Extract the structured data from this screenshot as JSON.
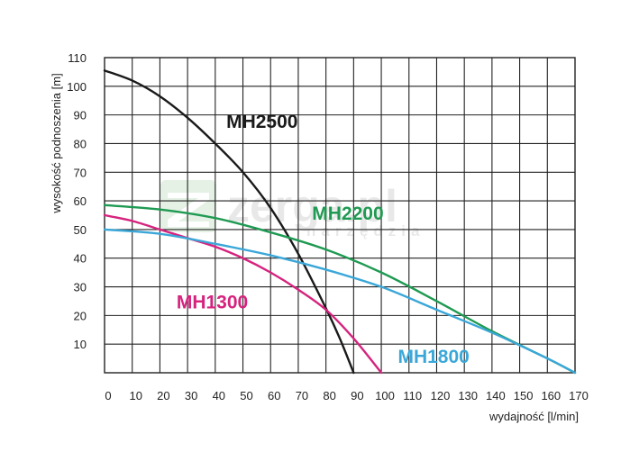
{
  "chart_data": {
    "type": "line",
    "xlabel": "wydajność [l/min]",
    "ylabel": "wysokość podnoszenia [m]",
    "xlim": [
      0,
      170
    ],
    "ylim": [
      0,
      110
    ],
    "x_ticks": [
      0,
      10,
      20,
      30,
      40,
      50,
      60,
      70,
      80,
      90,
      100,
      110,
      120,
      130,
      140,
      150,
      160,
      170
    ],
    "y_ticks": [
      10,
      20,
      30,
      40,
      50,
      60,
      70,
      80,
      90,
      100,
      110
    ],
    "grid": true,
    "series": [
      {
        "name": "MH2500",
        "color": "#1a1a1a",
        "points": [
          [
            0,
            105.5
          ],
          [
            10,
            102
          ],
          [
            20,
            96.5
          ],
          [
            30,
            89
          ],
          [
            40,
            80
          ],
          [
            50,
            70
          ],
          [
            60,
            57.5
          ],
          [
            70,
            41.5
          ],
          [
            80,
            22.5
          ],
          [
            85,
            12
          ],
          [
            90,
            0
          ]
        ]
      },
      {
        "name": "MH2200",
        "color": "#1f9a52",
        "points": [
          [
            0,
            58.5
          ],
          [
            20,
            57
          ],
          [
            40,
            54
          ],
          [
            60,
            49
          ],
          [
            80,
            43
          ],
          [
            100,
            35
          ],
          [
            120,
            25
          ],
          [
            140,
            14.5
          ],
          [
            160,
            5
          ],
          [
            170,
            0
          ]
        ]
      },
      {
        "name": "MH1300",
        "color": "#d6237e",
        "points": [
          [
            0,
            55
          ],
          [
            10,
            53
          ],
          [
            20,
            50
          ],
          [
            30,
            47
          ],
          [
            40,
            44
          ],
          [
            50,
            40
          ],
          [
            60,
            35
          ],
          [
            70,
            29
          ],
          [
            80,
            22
          ],
          [
            90,
            12
          ],
          [
            100,
            0
          ]
        ]
      },
      {
        "name": "MH1800",
        "color": "#3aa7d8",
        "points": [
          [
            0,
            50
          ],
          [
            20,
            48.5
          ],
          [
            40,
            45
          ],
          [
            60,
            41
          ],
          [
            80,
            36
          ],
          [
            100,
            30
          ],
          [
            120,
            22
          ],
          [
            140,
            14
          ],
          [
            160,
            5
          ],
          [
            170,
            0
          ]
        ]
      }
    ],
    "series_label_positions": {
      "MH2500": [
        44,
        85.5
      ],
      "MH2200": [
        75,
        53.5
      ],
      "MH1300": [
        26,
        22.5
      ],
      "MH1800": [
        106,
        3.5
      ]
    },
    "watermark": {
      "text": "zerga.pl",
      "subtext": "narzędzia"
    }
  }
}
